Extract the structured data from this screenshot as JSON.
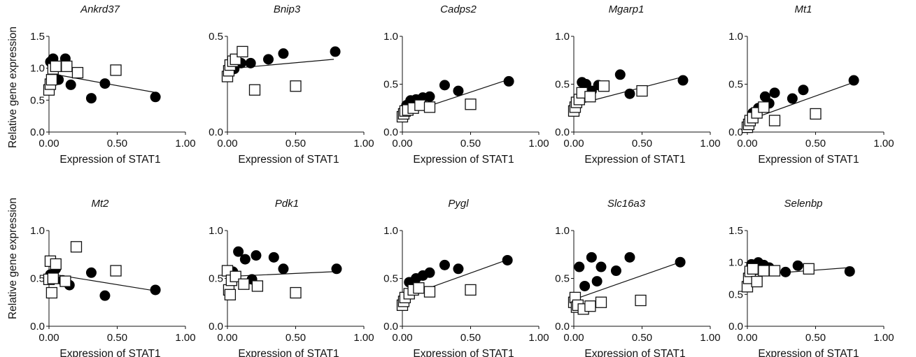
{
  "figure": {
    "ylabel": "Relative gene expression"
  },
  "chart_data": [
    {
      "type": "scatter",
      "title": "Ankrd37",
      "xlabel": "Expression of STAT1",
      "xlim": [
        0,
        1
      ],
      "ylim": [
        0,
        1.5
      ],
      "xticks": [
        "0.00",
        "0.50",
        "1.00"
      ],
      "yticks": [
        "0.0",
        "0.5",
        "1.0",
        "1.5"
      ],
      "series": [
        {
          "marker": "filled-circle",
          "x": [
            0.01,
            0.03,
            0.04,
            0.07,
            0.12,
            0.16,
            0.31,
            0.41,
            0.78
          ],
          "y": [
            1.1,
            1.15,
            0.85,
            0.82,
            1.15,
            0.74,
            0.53,
            0.76,
            0.55
          ]
        },
        {
          "marker": "open-square",
          "x": [
            0.0,
            0.01,
            0.02,
            0.03,
            0.05,
            0.13,
            0.21,
            0.49
          ],
          "y": [
            0.66,
            0.75,
            0.82,
            0.99,
            1.03,
            1.03,
            0.93,
            0.97
          ]
        }
      ],
      "fit_line": {
        "x": [
          0.0,
          0.78
        ],
        "y": [
          0.92,
          0.62
        ]
      }
    },
    {
      "type": "scatter",
      "title": "Bnip3",
      "xlabel": "Expression of STAT1",
      "xlim": [
        0,
        1
      ],
      "ylim": [
        0,
        0.5
      ],
      "xticks": [
        "0.00",
        "0.50",
        "1.00"
      ],
      "yticks": [
        "0.0",
        "0.5"
      ],
      "series": [
        {
          "marker": "filled-circle",
          "x": [
            0.05,
            0.1,
            0.17,
            0.3,
            0.41,
            0.79
          ],
          "y": [
            0.33,
            0.36,
            0.36,
            0.38,
            0.41,
            0.42
          ]
        },
        {
          "marker": "open-square",
          "x": [
            0.0,
            0.01,
            0.02,
            0.04,
            0.06,
            0.11,
            0.2,
            0.5
          ],
          "y": [
            0.29,
            0.32,
            0.35,
            0.37,
            0.38,
            0.42,
            0.22,
            0.24
          ]
        }
      ],
      "fit_line": {
        "x": [
          0.0,
          0.78
        ],
        "y": [
          0.33,
          0.38
        ]
      }
    },
    {
      "type": "scatter",
      "title": "Cadps2",
      "xlabel": "Expression of STAT1",
      "xlim": [
        0,
        1
      ],
      "ylim": [
        0,
        1.0
      ],
      "xticks": [
        "0.00",
        "0.50",
        "1.00"
      ],
      "yticks": [
        "0.0",
        "0.5",
        "1.0"
      ],
      "series": [
        {
          "marker": "filled-circle",
          "x": [
            0.03,
            0.06,
            0.1,
            0.15,
            0.2,
            0.31,
            0.41,
            0.78
          ],
          "y": [
            0.28,
            0.33,
            0.34,
            0.36,
            0.37,
            0.49,
            0.43,
            0.53
          ]
        },
        {
          "marker": "open-square",
          "x": [
            0.0,
            0.01,
            0.02,
            0.04,
            0.08,
            0.13,
            0.2,
            0.5
          ],
          "y": [
            0.16,
            0.19,
            0.22,
            0.23,
            0.25,
            0.28,
            0.26,
            0.29
          ]
        }
      ],
      "fit_line": {
        "x": [
          0.0,
          0.78
        ],
        "y": [
          0.18,
          0.55
        ]
      }
    },
    {
      "type": "scatter",
      "title": "Mgarp1",
      "xlabel": "Expression of STAT1",
      "xlim": [
        0,
        1
      ],
      "ylim": [
        0,
        1.0
      ],
      "xticks": [
        "0.00",
        "0.50",
        "1.00"
      ],
      "yticks": [
        "0.0",
        "0.5",
        "1.0"
      ],
      "series": [
        {
          "marker": "filled-circle",
          "x": [
            0.06,
            0.09,
            0.13,
            0.18,
            0.34,
            0.41,
            0.8
          ],
          "y": [
            0.52,
            0.5,
            0.43,
            0.49,
            0.6,
            0.4,
            0.54
          ]
        },
        {
          "marker": "open-square",
          "x": [
            0.0,
            0.01,
            0.02,
            0.04,
            0.06,
            0.12,
            0.22,
            0.5
          ],
          "y": [
            0.22,
            0.26,
            0.31,
            0.34,
            0.41,
            0.37,
            0.48,
            0.43
          ]
        }
      ],
      "fit_line": {
        "x": [
          0.0,
          0.78
        ],
        "y": [
          0.28,
          0.57
        ]
      }
    },
    {
      "type": "scatter",
      "title": "Mt1",
      "xlabel": "Expression of STAT1",
      "xlim": [
        0,
        1
      ],
      "ylim": [
        0,
        1.0
      ],
      "xticks": [
        "0.00",
        "0.50",
        "1.00"
      ],
      "yticks": [
        "0.0",
        "0.5",
        "1.0"
      ],
      "series": [
        {
          "marker": "filled-circle",
          "x": [
            0.04,
            0.08,
            0.13,
            0.16,
            0.2,
            0.33,
            0.41,
            0.78
          ],
          "y": [
            0.2,
            0.25,
            0.37,
            0.3,
            0.41,
            0.35,
            0.44,
            0.54
          ]
        },
        {
          "marker": "open-square",
          "x": [
            0.0,
            0.01,
            0.02,
            0.04,
            0.07,
            0.12,
            0.2,
            0.5
          ],
          "y": [
            0.05,
            0.08,
            0.12,
            0.15,
            0.2,
            0.26,
            0.12,
            0.19
          ]
        }
      ],
      "fit_line": {
        "x": [
          0.0,
          0.78
        ],
        "y": [
          0.12,
          0.52
        ]
      }
    },
    {
      "type": "scatter",
      "title": "Mt2",
      "xlabel": "Expression of STAT1",
      "xlim": [
        0,
        1
      ],
      "ylim": [
        0,
        1.0
      ],
      "xticks": [
        "0.00",
        "0.50",
        "1.00"
      ],
      "yticks": [
        "0.0",
        "0.5",
        "1.0"
      ],
      "series": [
        {
          "marker": "filled-circle",
          "x": [
            0.01,
            0.05,
            0.1,
            0.15,
            0.31,
            0.41,
            0.78
          ],
          "y": [
            0.54,
            0.6,
            0.48,
            0.43,
            0.56,
            0.32,
            0.38
          ]
        },
        {
          "marker": "open-square",
          "x": [
            0.0,
            0.01,
            0.02,
            0.03,
            0.05,
            0.12,
            0.2,
            0.49
          ],
          "y": [
            0.49,
            0.68,
            0.35,
            0.5,
            0.65,
            0.47,
            0.83,
            0.58
          ]
        }
      ],
      "fit_line": {
        "x": [
          0.0,
          0.78
        ],
        "y": [
          0.55,
          0.37
        ]
      }
    },
    {
      "type": "scatter",
      "title": "Pdk1",
      "xlabel": "Expression of STAT1",
      "xlim": [
        0,
        1
      ],
      "ylim": [
        0,
        1.0
      ],
      "xticks": [
        "0.00",
        "0.50",
        "1.00"
      ],
      "yticks": [
        "0.0",
        "0.5",
        "1.0"
      ],
      "series": [
        {
          "marker": "filled-circle",
          "x": [
            0.04,
            0.08,
            0.13,
            0.18,
            0.21,
            0.34,
            0.41,
            0.8
          ],
          "y": [
            0.57,
            0.78,
            0.7,
            0.49,
            0.74,
            0.72,
            0.6,
            0.6
          ]
        },
        {
          "marker": "open-square",
          "x": [
            0.0,
            0.01,
            0.02,
            0.03,
            0.06,
            0.12,
            0.22,
            0.5
          ],
          "y": [
            0.58,
            0.38,
            0.33,
            0.48,
            0.52,
            0.44,
            0.42,
            0.35
          ]
        }
      ],
      "fit_line": {
        "x": [
          0.0,
          0.78
        ],
        "y": [
          0.52,
          0.57
        ]
      }
    },
    {
      "type": "scatter",
      "title": "Pygl",
      "xlabel": "Expression of STAT1",
      "xlim": [
        0,
        1
      ],
      "ylim": [
        0,
        1.0
      ],
      "xticks": [
        "0.00",
        "0.50",
        "1.00"
      ],
      "yticks": [
        "0.0",
        "0.5",
        "1.0"
      ],
      "series": [
        {
          "marker": "filled-circle",
          "x": [
            0.05,
            0.1,
            0.15,
            0.2,
            0.31,
            0.41,
            0.77
          ],
          "y": [
            0.46,
            0.5,
            0.53,
            0.56,
            0.64,
            0.6,
            0.69
          ]
        },
        {
          "marker": "open-square",
          "x": [
            0.0,
            0.01,
            0.02,
            0.05,
            0.08,
            0.12,
            0.2,
            0.5
          ],
          "y": [
            0.22,
            0.26,
            0.3,
            0.34,
            0.38,
            0.4,
            0.36,
            0.38
          ]
        }
      ],
      "fit_line": {
        "x": [
          0.0,
          0.78
        ],
        "y": [
          0.3,
          0.7
        ]
      }
    },
    {
      "type": "scatter",
      "title": "Slc16a3",
      "xlabel": "Expression of STAT1",
      "xlim": [
        0,
        1
      ],
      "ylim": [
        0,
        1.0
      ],
      "xticks": [
        "0.00",
        "0.50",
        "1.00"
      ],
      "yticks": [
        "0.0",
        "0.5",
        "1.0"
      ],
      "series": [
        {
          "marker": "filled-circle",
          "x": [
            0.04,
            0.08,
            0.13,
            0.17,
            0.2,
            0.31,
            0.41,
            0.78
          ],
          "y": [
            0.62,
            0.42,
            0.72,
            0.47,
            0.62,
            0.58,
            0.72,
            0.67
          ]
        },
        {
          "marker": "open-square",
          "x": [
            0.0,
            0.01,
            0.02,
            0.03,
            0.07,
            0.12,
            0.2,
            0.49
          ],
          "y": [
            0.25,
            0.3,
            0.2,
            0.22,
            0.18,
            0.21,
            0.25,
            0.27
          ]
        }
      ],
      "fit_line": {
        "x": [
          0.0,
          0.78
        ],
        "y": [
          0.28,
          0.67
        ]
      }
    },
    {
      "type": "scatter",
      "title": "Selenbp",
      "xlabel": "Expression of STAT1",
      "xlim": [
        0,
        1
      ],
      "ylim": [
        0,
        1.5
      ],
      "xticks": [
        "0.00",
        "0.50",
        "1.00"
      ],
      "yticks": [
        "0.0",
        "0.5",
        "1.0",
        "1.5"
      ],
      "series": [
        {
          "marker": "filled-circle",
          "x": [
            0.03,
            0.08,
            0.12,
            0.16,
            0.28,
            0.37,
            0.75
          ],
          "y": [
            0.97,
            1.0,
            0.96,
            0.92,
            0.85,
            0.95,
            0.86
          ]
        },
        {
          "marker": "open-square",
          "x": [
            0.0,
            0.01,
            0.02,
            0.04,
            0.07,
            0.12,
            0.2,
            0.45
          ],
          "y": [
            0.62,
            0.75,
            0.86,
            0.9,
            0.7,
            0.87,
            0.87,
            0.9
          ]
        }
      ],
      "fit_line": {
        "x": [
          0.0,
          0.75
        ],
        "y": [
          0.8,
          0.92
        ]
      }
    }
  ]
}
